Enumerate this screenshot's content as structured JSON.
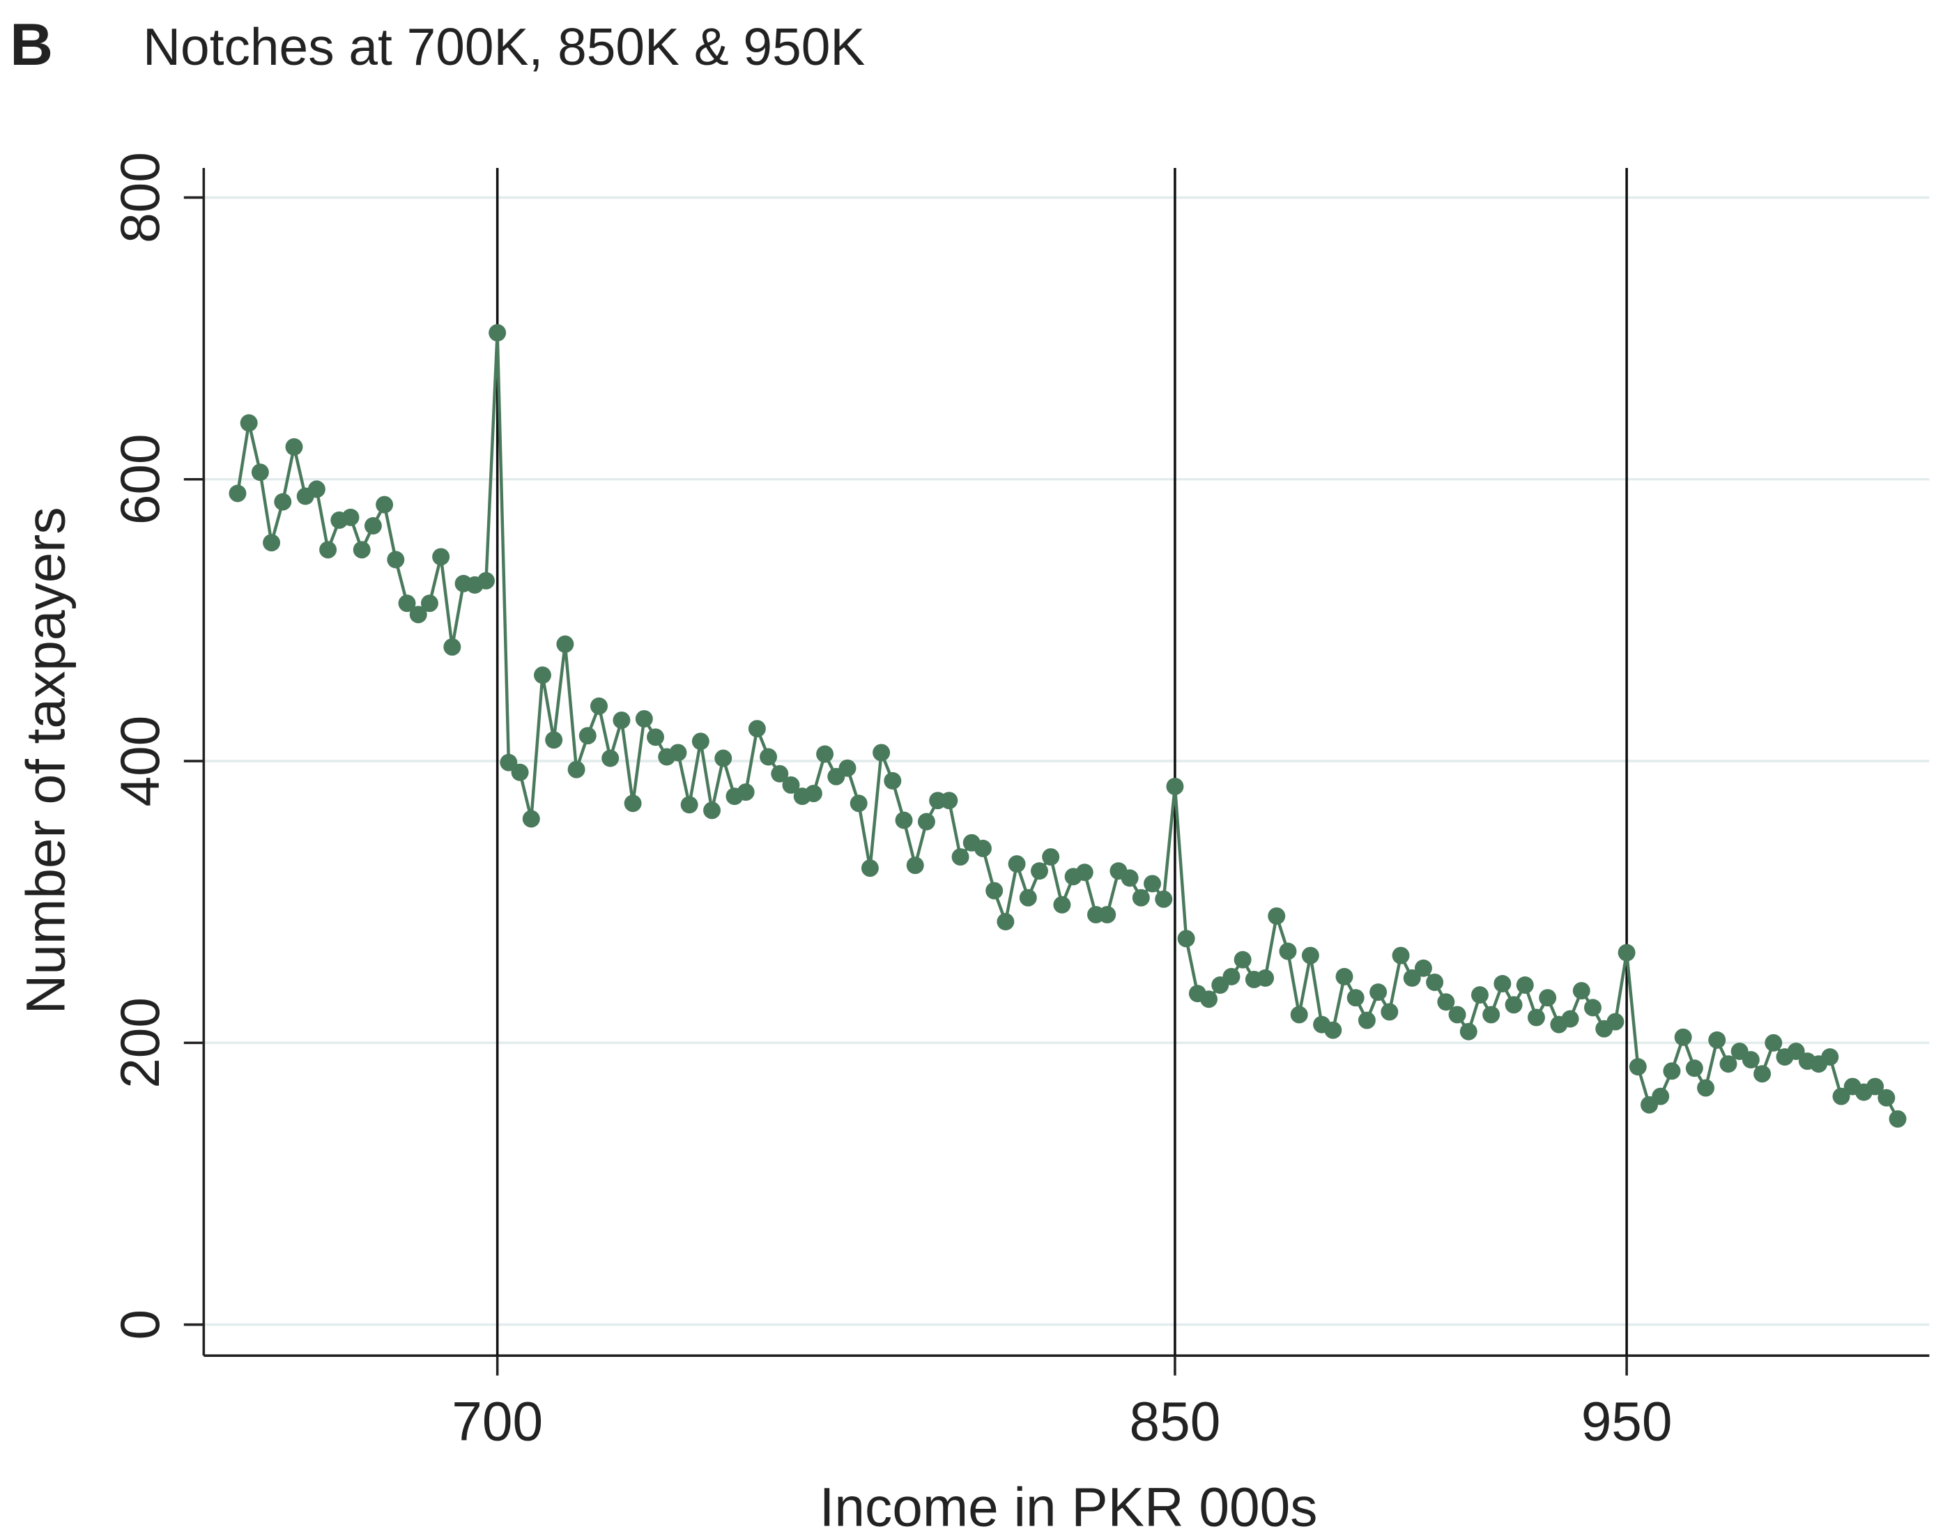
{
  "chart_data": {
    "type": "line",
    "panel_label": "B",
    "title": "Notches at 700K, 850K & 950K",
    "x_label": "Income in PKR 000s",
    "y_label": "Number of taxpayers",
    "x": [
      642.5,
      645,
      647.5,
      650,
      652.5,
      655,
      657.5,
      660,
      662.5,
      665,
      667.5,
      670,
      672.5,
      675,
      677.5,
      680,
      682.5,
      685,
      687.5,
      690,
      692.5,
      695,
      697.5,
      700,
      702.5,
      705,
      707.5,
      710,
      712.5,
      715,
      717.5,
      720,
      722.5,
      725,
      727.5,
      730,
      732.5,
      735,
      737.5,
      740,
      742.5,
      745,
      747.5,
      750,
      752.5,
      755,
      757.5,
      760,
      762.5,
      765,
      767.5,
      770,
      772.5,
      775,
      777.5,
      780,
      782.5,
      785,
      787.5,
      790,
      792.5,
      795,
      797.5,
      800,
      802.5,
      805,
      807.5,
      810,
      812.5,
      815,
      817.5,
      820,
      822.5,
      825,
      827.5,
      830,
      832.5,
      835,
      837.5,
      840,
      842.5,
      845,
      847.5,
      850,
      852.5,
      855,
      857.5,
      860,
      862.5,
      865,
      867.5,
      870,
      872.5,
      875,
      877.5,
      880,
      882.5,
      885,
      887.5,
      890,
      892.5,
      895,
      897.5,
      900,
      902.5,
      905,
      907.5,
      910,
      912.5,
      915,
      917.5,
      920,
      922.5,
      925,
      927.5,
      930,
      932.5,
      935,
      937.5,
      940,
      942.5,
      945,
      947.5,
      950,
      952.5,
      955,
      957.5,
      960,
      962.5,
      965,
      967.5,
      970,
      972.5,
      975,
      977.5,
      980,
      982.5,
      985,
      987.5,
      990,
      992.5,
      995,
      997.5,
      1000,
      1002.5,
      1005,
      1007.5,
      1010
    ],
    "series": [
      {
        "color": "#4a7a5c",
        "values": [
          590,
          640,
          605,
          555,
          584,
          623,
          588,
          593,
          550,
          571,
          573,
          550,
          567,
          582,
          543,
          512,
          504,
          512,
          545,
          481,
          526,
          525,
          528,
          704,
          399,
          392,
          359,
          461,
          415,
          483,
          394,
          418,
          439,
          402,
          429,
          370,
          430,
          417,
          403,
          406,
          369,
          414,
          365,
          402,
          375,
          378,
          423,
          403,
          391,
          383,
          375,
          377,
          405,
          389,
          395,
          370,
          324,
          406,
          386,
          358,
          326,
          357,
          372,
          372,
          332,
          342,
          338,
          308,
          286,
          327,
          303,
          322,
          332,
          298,
          318,
          321,
          291,
          291,
          322,
          317,
          303,
          313,
          302,
          382,
          274,
          235,
          231,
          241,
          247,
          259,
          245,
          246,
          290,
          265,
          220,
          262,
          213,
          209,
          247,
          232,
          216,
          236,
          222,
          262,
          246,
          253,
          243,
          229,
          220,
          208,
          234,
          220,
          242,
          227,
          241,
          218,
          232,
          213,
          217,
          237,
          225,
          210,
          215,
          264,
          183,
          156,
          162,
          180,
          204,
          182,
          168,
          202,
          185,
          194,
          188,
          178,
          200,
          190,
          194,
          187,
          185,
          190,
          162,
          169,
          165,
          169,
          161,
          146
        ]
      }
    ],
    "vlines": [
      700,
      850,
      950
    ],
    "xlim": [
      635,
      1017
    ],
    "ylim": [
      -22,
      821
    ],
    "xticks": [
      700,
      850,
      950
    ],
    "yticks": [
      0,
      200,
      400,
      600,
      800
    ],
    "grid": true
  }
}
